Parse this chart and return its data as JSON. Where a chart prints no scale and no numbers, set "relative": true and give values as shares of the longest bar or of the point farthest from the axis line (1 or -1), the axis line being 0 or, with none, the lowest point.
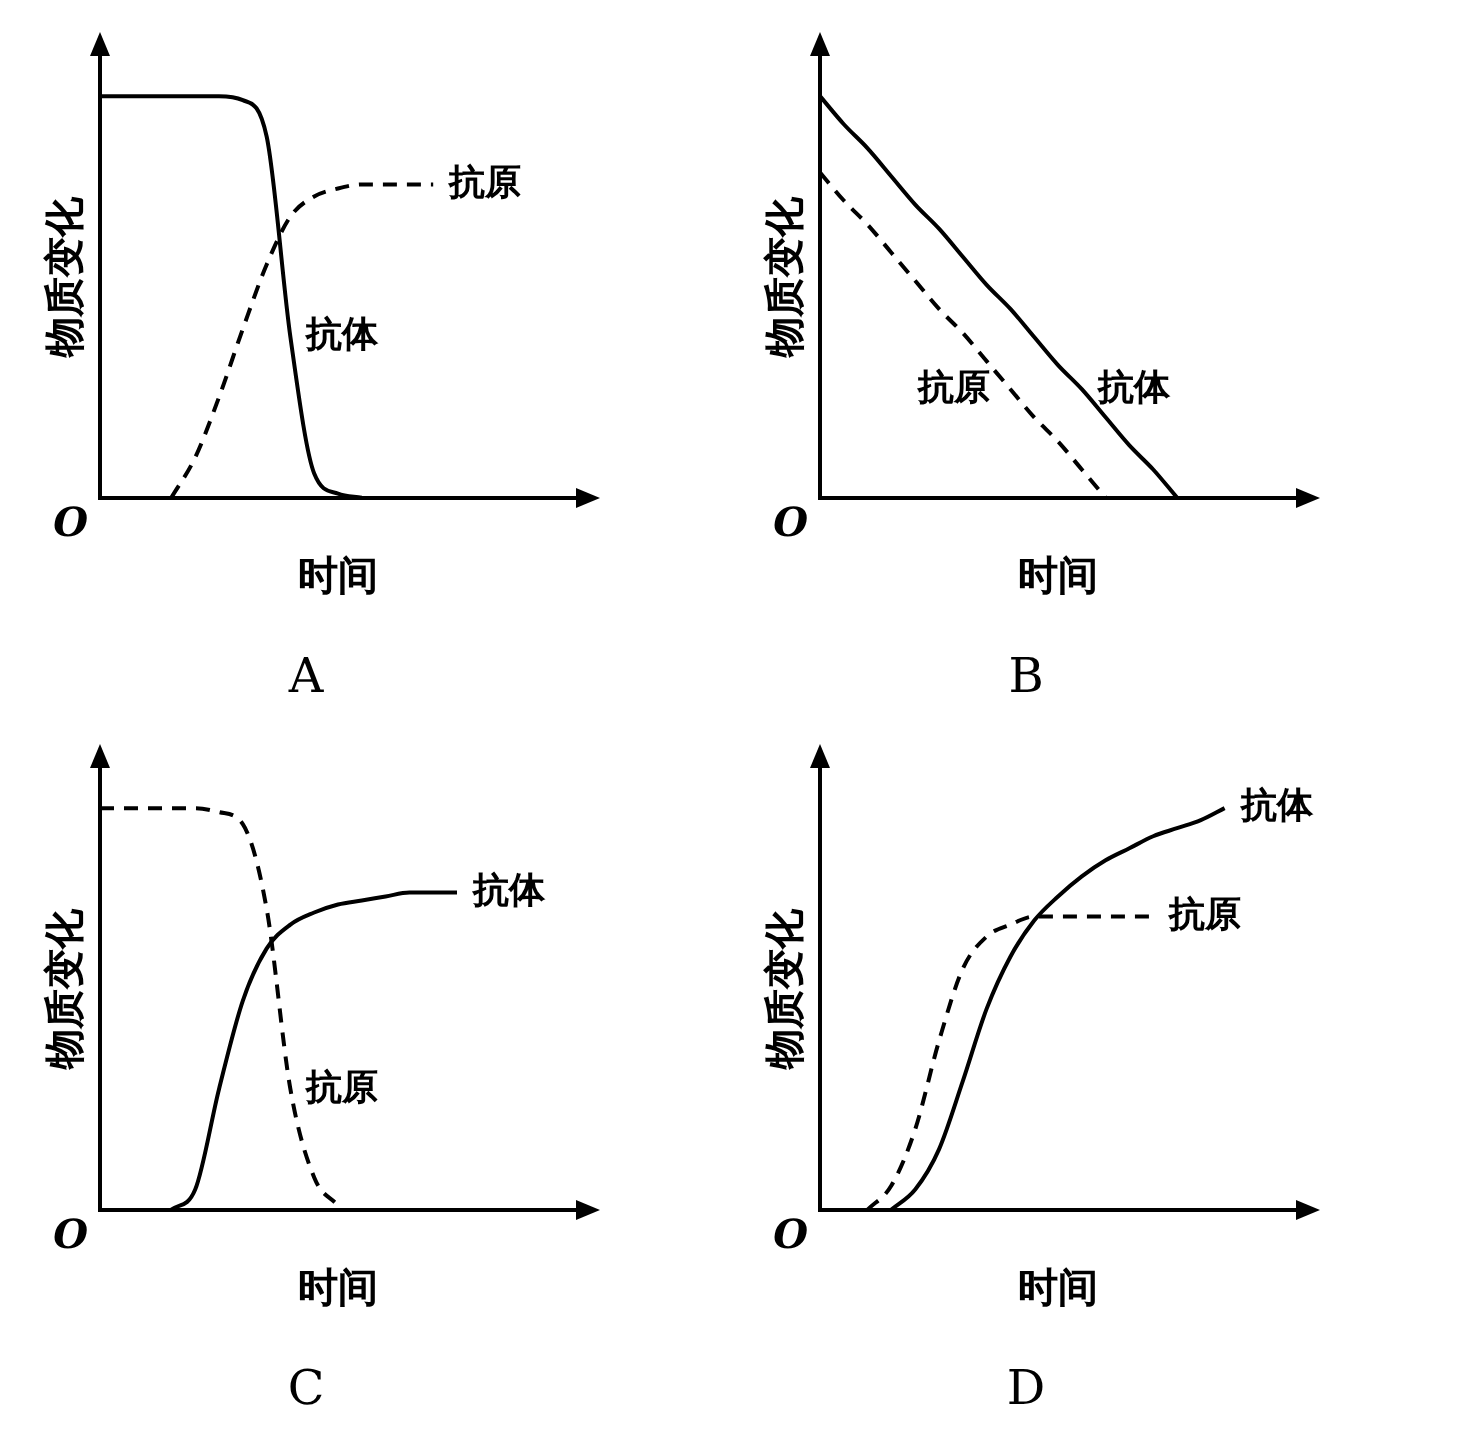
{
  "chart_data": [
    {
      "type": "line",
      "title": "A",
      "xlabel": "时间",
      "ylabel": "物质变化",
      "relative": true,
      "grid": false,
      "legend": false,
      "marker": "none",
      "annotations": [
        "O"
      ],
      "categories": [
        null,
        null,
        null,
        null,
        null,
        null,
        null,
        null,
        null,
        null,
        null,
        null,
        null,
        null,
        null,
        null,
        null,
        null,
        null,
        null,
        null
      ],
      "series": [
        {
          "name": "抗体",
          "color": "#000000",
          "line_style": "solid",
          "values": [
            1,
            1,
            1,
            1,
            1,
            1,
            0.99,
            0.9,
            0.4,
            0.06,
            0.01,
            0,
            null,
            null,
            null,
            null,
            null,
            null,
            null,
            null,
            null
          ]
        },
        {
          "name": "抗原",
          "color": "#000000",
          "line_style": "dashed",
          "values": [
            null,
            null,
            null,
            0,
            0.1,
            0.25,
            0.42,
            0.58,
            0.7,
            0.75,
            0.77,
            0.78,
            0.78,
            0.78,
            0.78,
            null,
            null,
            null,
            null,
            null,
            null
          ]
        }
      ]
    },
    {
      "type": "line",
      "title": "B",
      "xlabel": "时间",
      "ylabel": "物质变化",
      "relative": true,
      "grid": false,
      "legend": false,
      "marker": "none",
      "annotations": [
        "O"
      ],
      "categories": [
        null,
        null,
        null,
        null,
        null,
        null,
        null,
        null,
        null,
        null,
        null,
        null,
        null,
        null,
        null,
        null,
        null,
        null,
        null,
        null,
        null
      ],
      "series": [
        {
          "name": "抗体",
          "color": "#000000",
          "line_style": "solid",
          "values": [
            1,
            0.93,
            0.87,
            0.8,
            0.73,
            0.67,
            0.6,
            0.53,
            0.47,
            0.4,
            0.33,
            0.27,
            0.2,
            0.13,
            0.07,
            0,
            null,
            null,
            null,
            null,
            null
          ]
        },
        {
          "name": "抗原",
          "color": "#000000",
          "line_style": "dashed",
          "values": [
            0.81,
            0.74,
            0.68,
            0.61,
            0.54,
            0.47,
            0.41,
            0.34,
            0.27,
            0.2,
            0.14,
            0.07,
            0,
            null,
            null,
            null,
            null,
            null,
            null,
            null,
            null
          ]
        }
      ]
    },
    {
      "type": "line",
      "title": "C",
      "xlabel": "时间",
      "ylabel": "物质变化",
      "relative": true,
      "grid": false,
      "legend": false,
      "marker": "none",
      "annotations": [
        "O"
      ],
      "categories": [
        null,
        null,
        null,
        null,
        null,
        null,
        null,
        null,
        null,
        null,
        null,
        null,
        null,
        null,
        null,
        null,
        null,
        null,
        null,
        null,
        null
      ],
      "series": [
        {
          "name": "抗体",
          "color": "#000000",
          "line_style": "solid",
          "values": [
            null,
            null,
            null,
            0,
            0.05,
            0.3,
            0.52,
            0.65,
            0.71,
            0.74,
            0.76,
            0.77,
            0.78,
            0.79,
            0.79,
            0.79,
            null,
            null,
            null,
            null,
            null
          ]
        },
        {
          "name": "抗原",
          "color": "#000000",
          "line_style": "dashed",
          "values": [
            1,
            1,
            1,
            1,
            1,
            0.99,
            0.96,
            0.75,
            0.3,
            0.08,
            0.01,
            null,
            null,
            null,
            null,
            null,
            null,
            null,
            null,
            null,
            null
          ]
        }
      ]
    },
    {
      "type": "line",
      "title": "D",
      "xlabel": "时间",
      "ylabel": "物质变化",
      "relative": true,
      "grid": false,
      "legend": false,
      "marker": "none",
      "annotations": [
        "O"
      ],
      "categories": [
        null,
        null,
        null,
        null,
        null,
        null,
        null,
        null,
        null,
        null,
        null,
        null,
        null,
        null,
        null,
        null,
        null,
        null,
        null,
        null,
        null
      ],
      "series": [
        {
          "name": "抗体",
          "color": "#000000",
          "line_style": "solid",
          "values": [
            null,
            null,
            null,
            0,
            0.05,
            0.15,
            0.32,
            0.5,
            0.63,
            0.72,
            0.78,
            0.83,
            0.87,
            0.9,
            0.93,
            0.95,
            0.97,
            1,
            null,
            null,
            null
          ]
        },
        {
          "name": "抗原",
          "color": "#000000",
          "line_style": "dashed",
          "values": [
            null,
            null,
            0,
            0.06,
            0.2,
            0.42,
            0.6,
            0.68,
            0.71,
            0.73,
            0.73,
            0.73,
            0.73,
            0.73,
            0.73,
            null,
            null,
            null,
            null,
            null,
            null
          ]
        }
      ]
    }
  ]
}
